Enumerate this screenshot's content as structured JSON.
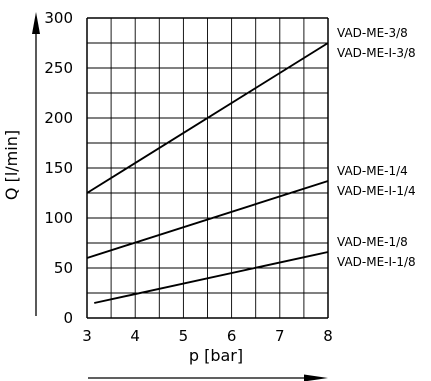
{
  "chart_data": {
    "type": "line",
    "xlabel": "p [bar]",
    "ylabel": "Q [l/min]",
    "xlim": [
      3,
      8
    ],
    "ylim": [
      0,
      300
    ],
    "x_ticks": [
      "3",
      "4",
      "5",
      "6",
      "7",
      "8"
    ],
    "y_ticks": [
      "0",
      "50",
      "100",
      "150",
      "200",
      "250",
      "300"
    ],
    "grid": true,
    "series": [
      {
        "name": "VAD-ME-3/8 / VAD-ME-I-3/8",
        "x": [
          3,
          8
        ],
        "y": [
          125,
          275
        ],
        "labels": [
          "VAD-ME-3/8",
          "VAD-ME-I-3/8"
        ]
      },
      {
        "name": "VAD-ME-1/4 / VAD-ME-I-1/4",
        "x": [
          3,
          8
        ],
        "y": [
          60,
          137
        ],
        "labels": [
          "VAD-ME-1/4",
          "VAD-ME-I-1/4"
        ]
      },
      {
        "name": "VAD-ME-1/8 / VAD-ME-I-1/8",
        "x": [
          3.15,
          8
        ],
        "y": [
          15,
          66
        ],
        "labels": [
          "VAD-ME-1/8",
          "VAD-ME-I-1/8"
        ]
      }
    ]
  }
}
